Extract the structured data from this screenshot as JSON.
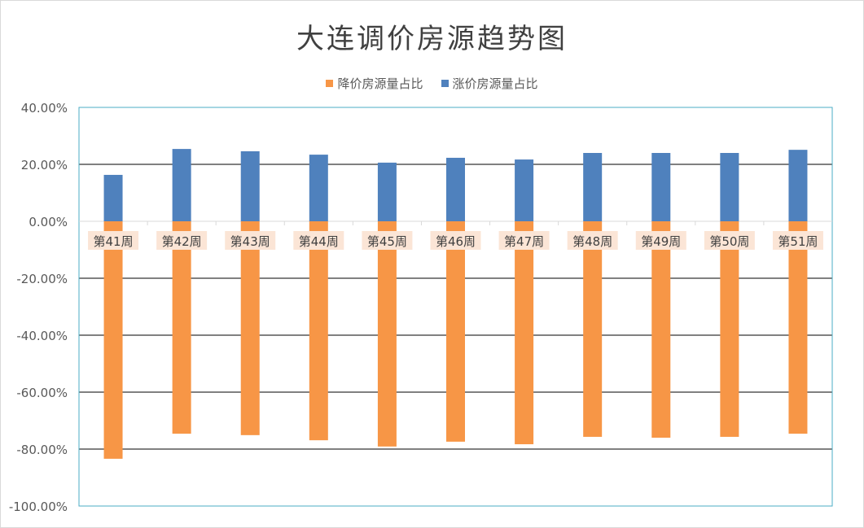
{
  "chart_data": {
    "type": "bar",
    "title": "大连调价房源趋势图",
    "categories": [
      "第41周",
      "第42周",
      "第43周",
      "第44周",
      "第45周",
      "第46周",
      "第47周",
      "第48周",
      "第49周",
      "第50周",
      "第51周"
    ],
    "series": [
      {
        "name": "降价房源量占比",
        "color": "#f79646",
        "values": [
          -83.4,
          -74.6,
          -75.1,
          -76.9,
          -79.1,
          -77.4,
          -78.3,
          -75.7,
          -76.0,
          -75.7,
          -74.6
        ]
      },
      {
        "name": "涨价房源量占比",
        "color": "#4f81bd",
        "values": [
          16.3,
          25.4,
          24.6,
          23.4,
          20.6,
          22.3,
          21.7,
          24.0,
          24.0,
          24.0,
          25.1
        ]
      }
    ],
    "ylim": [
      -100,
      40
    ],
    "yticks": [
      40,
      20,
      0,
      -20,
      -40,
      -60,
      -80,
      -100
    ],
    "ytick_labels": [
      "40.00%",
      "20.00%",
      "0.00%",
      "-20.00%",
      "-40.00%",
      "-60.00%",
      "-80.00%",
      "-100.00%"
    ],
    "grid": true,
    "legend": "top",
    "xlabel": "",
    "ylabel": ""
  }
}
